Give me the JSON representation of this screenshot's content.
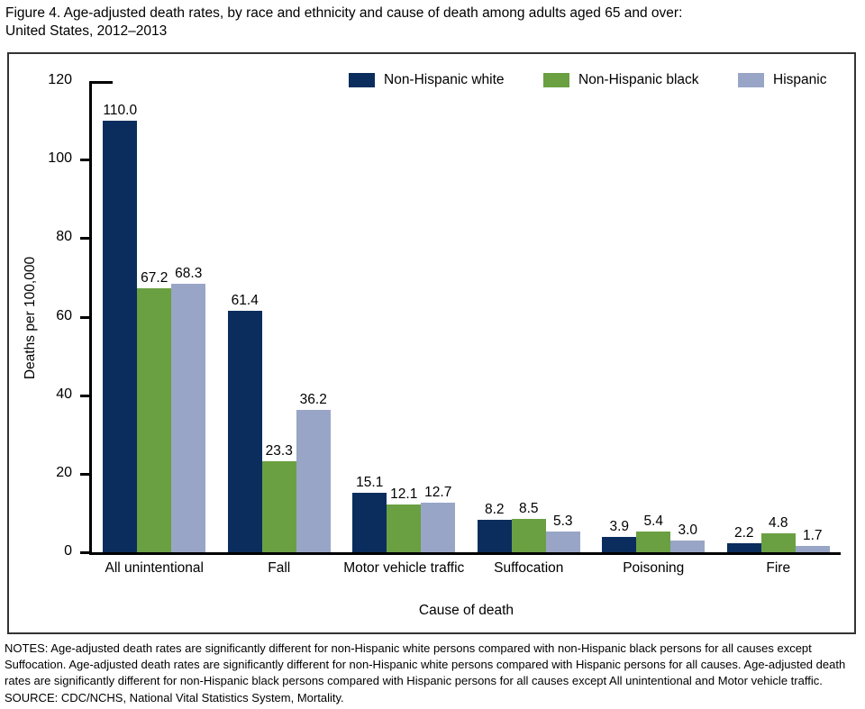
{
  "figure": {
    "title_line1": "Figure 4. Age-adjusted death rates, by race and ethnicity and cause of death among adults aged 65 and over:",
    "title_line2": "United States, 2012–2013",
    "notes": "NOTES: Age-adjusted death rates are significantly different for non-Hispanic white persons compared with non-Hispanic black persons for all causes except Suffocation. Age-adjusted death rates are significantly different for non-Hispanic white persons compared with Hispanic persons for all causes. Age-adjusted death rates are significantly different for non-Hispanic black persons compared with Hispanic persons for all causes except All unintentional and Motor vehicle traffic.",
    "source": "SOURCE: CDC/NCHS, National Vital Statistics System, Mortality."
  },
  "colors": {
    "non_hispanic_white": "#0a2d5e",
    "non_hispanic_black": "#6aa041",
    "hispanic": "#98a5c6",
    "axis": "#000000"
  },
  "chart_data": {
    "type": "bar",
    "title": "Figure 4. Age-adjusted death rates, by race and ethnicity and cause of death among adults aged 65 and over: United States, 2012–2013",
    "categories": [
      "All unintentional",
      "Fall",
      "Motor vehicle traffic",
      "Suffocation",
      "Poisoning",
      "Fire"
    ],
    "series": [
      {
        "name": "Non-Hispanic white",
        "color": "#0a2d5e",
        "values": [
          110.0,
          61.4,
          15.1,
          8.2,
          3.9,
          2.2
        ],
        "labels": [
          "110.0",
          "61.4",
          "15.1",
          "8.2",
          "3.9",
          "2.2"
        ]
      },
      {
        "name": "Non-Hispanic black",
        "color": "#6aa041",
        "values": [
          67.2,
          23.3,
          12.1,
          8.5,
          5.4,
          4.8
        ],
        "labels": [
          "67.2",
          "23.3",
          "12.1",
          "8.5",
          "5.4",
          "4.8"
        ]
      },
      {
        "name": "Hispanic",
        "color": "#98a5c6",
        "values": [
          68.3,
          36.2,
          12.7,
          5.3,
          3.0,
          1.7
        ],
        "labels": [
          "68.3",
          "36.2",
          "12.7",
          "5.3",
          "3.0",
          "1.7"
        ]
      }
    ],
    "xlabel": "Cause of death",
    "ylabel": "Deaths per 100,000",
    "ylim": [
      0,
      120
    ],
    "yticks": [
      0,
      20,
      40,
      60,
      80,
      100,
      120
    ],
    "grid": false,
    "legend_position": "top"
  }
}
